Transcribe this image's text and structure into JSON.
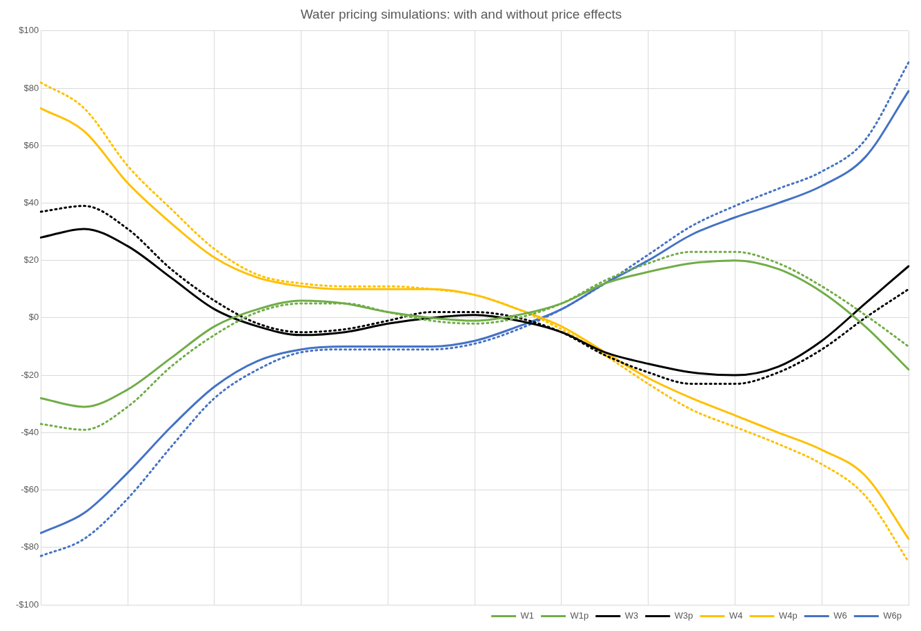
{
  "chart_data": {
    "type": "line",
    "title": "Water pricing simulations: with and without price effects",
    "categories": [
      null,
      null,
      null,
      null,
      null,
      null,
      null,
      null,
      null,
      null,
      null,
      null,
      null,
      null,
      null,
      null,
      null,
      null,
      null,
      null,
      null
    ],
    "ylim": [
      -100,
      100
    ],
    "yticks": [
      {
        "value": -100,
        "label": "-$100"
      },
      {
        "value": -80,
        "label": "-$80"
      },
      {
        "value": -60,
        "label": "-$60"
      },
      {
        "value": -40,
        "label": "-$40"
      },
      {
        "value": -20,
        "label": "-$20"
      },
      {
        "value": 0,
        "label": "$0"
      },
      {
        "value": 20,
        "label": "$20"
      },
      {
        "value": 40,
        "label": "$40"
      },
      {
        "value": 60,
        "label": "$60"
      },
      {
        "value": 80,
        "label": "$80"
      },
      {
        "value": 100,
        "label": "$100"
      }
    ],
    "grid": true,
    "legend": "bottom right",
    "tick_labels": "y",
    "marker": "none",
    "series": [
      {
        "name": "W1",
        "color": "#70ad47",
        "line_style": "dotted",
        "values": [
          -37,
          -39,
          -31,
          -17,
          -6,
          2,
          5,
          5,
          2,
          -1,
          -2,
          0,
          5,
          13,
          19,
          23,
          23,
          19,
          11,
          1,
          -10
        ]
      },
      {
        "name": "W1p",
        "color": "#70ad47",
        "line_style": "solid",
        "values": [
          -28,
          -31,
          -25,
          -14,
          -3,
          3,
          6,
          5,
          2,
          0,
          -1,
          1,
          5,
          12,
          16,
          19,
          20,
          17,
          9,
          -3,
          -18
        ]
      },
      {
        "name": "W3",
        "color": "#000000",
        "line_style": "dotted",
        "values": [
          37,
          39,
          31,
          17,
          6,
          -2,
          -5,
          -4,
          -1,
          2,
          2,
          0,
          -5,
          -13,
          -19,
          -23,
          -23,
          -19,
          -11,
          0,
          10
        ]
      },
      {
        "name": "W3p",
        "color": "#000000",
        "line_style": "solid",
        "values": [
          28,
          31,
          25,
          14,
          3,
          -3,
          -6,
          -5,
          -2,
          0,
          1,
          -1,
          -5,
          -12,
          -16,
          -19,
          -20,
          -17,
          -8,
          5,
          18
        ]
      },
      {
        "name": "W4",
        "color": "#ffc000",
        "line_style": "dotted",
        "values": [
          82,
          73,
          53,
          38,
          24,
          15,
          12,
          11,
          11,
          10,
          8,
          3,
          -4,
          -13,
          -23,
          -32,
          -38,
          -44,
          -51,
          -62,
          -85
        ]
      },
      {
        "name": "W4p",
        "color": "#ffc000",
        "line_style": "solid",
        "values": [
          73,
          65,
          47,
          33,
          21,
          14,
          11,
          10,
          10,
          10,
          8,
          3,
          -3,
          -12,
          -21,
          -28,
          -34,
          -40,
          -46,
          -55,
          -77
        ]
      },
      {
        "name": "W6",
        "color": "#4472c4",
        "line_style": "dotted",
        "values": [
          -83,
          -77,
          -63,
          -45,
          -28,
          -18,
          -12,
          -11,
          -11,
          -11,
          -9,
          -4,
          3,
          12,
          22,
          32,
          39,
          45,
          51,
          62,
          89
        ]
      },
      {
        "name": "W6p",
        "color": "#4472c4",
        "line_style": "solid",
        "values": [
          -75,
          -68,
          -54,
          -38,
          -24,
          -15,
          -11,
          -10,
          -10,
          -10,
          -8,
          -3,
          3,
          12,
          20,
          29,
          35,
          40,
          46,
          56,
          79
        ]
      }
    ]
  }
}
